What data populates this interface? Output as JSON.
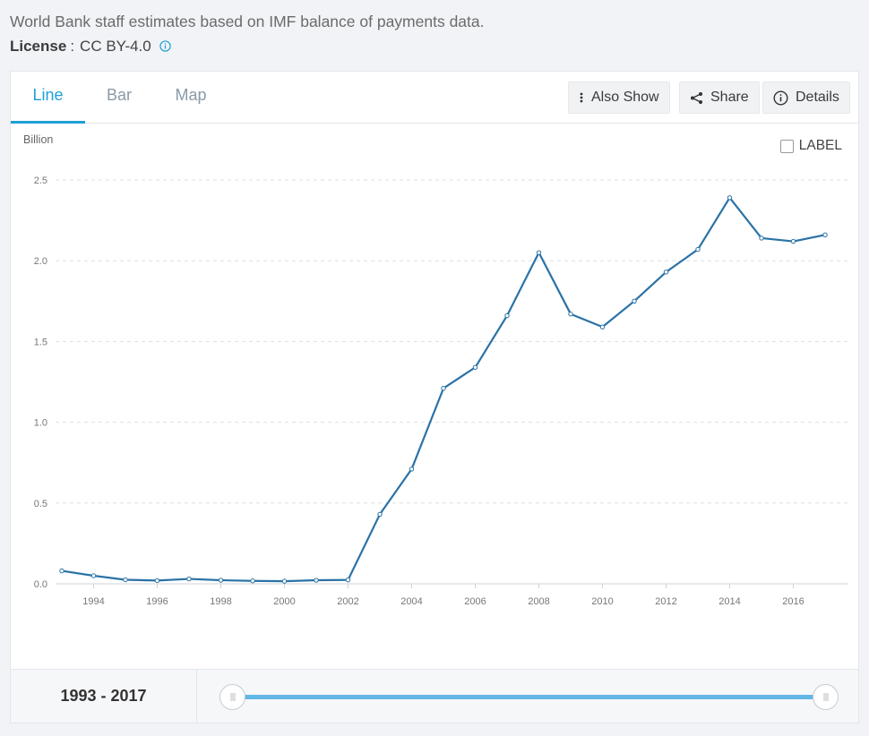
{
  "source_note": "World Bank staff estimates based on IMF balance of payments data.",
  "license": {
    "label": "License",
    "separator": ":",
    "value": "CC BY-4.0",
    "icon": "info-icon"
  },
  "tabs": [
    {
      "label": "Line",
      "active": true
    },
    {
      "label": "Bar",
      "active": false
    },
    {
      "label": "Map",
      "active": false
    }
  ],
  "toolbar": {
    "also_show": "Also Show",
    "share": "Share",
    "details": "Details"
  },
  "label_toggle": {
    "text": "LABEL",
    "checked": false
  },
  "range": {
    "label": "1993 - 2017",
    "start": 1993,
    "end": 2017
  },
  "colors": {
    "accent": "#1f9fd6",
    "line": "#2a72a6",
    "slider": "#63b7e6"
  },
  "chart_data": {
    "type": "line",
    "ylabel": "Billion",
    "ylim": [
      0,
      2.5
    ],
    "yticks": [
      "0.0",
      "0.5",
      "1.0",
      "1.5",
      "2.0",
      "2.5"
    ],
    "xticks": [
      "1994",
      "1996",
      "1998",
      "2000",
      "2002",
      "2004",
      "2006",
      "2008",
      "2010",
      "2012",
      "2014",
      "2016"
    ],
    "grid": true,
    "x": [
      1993,
      1994,
      1995,
      1996,
      1997,
      1998,
      1999,
      2000,
      2001,
      2002,
      2003,
      2004,
      2005,
      2006,
      2007,
      2008,
      2009,
      2010,
      2011,
      2012,
      2013,
      2014,
      2015,
      2016,
      2017
    ],
    "values": [
      0.08,
      0.05,
      0.025,
      0.02,
      0.03,
      0.022,
      0.018,
      0.016,
      0.022,
      0.024,
      0.43,
      0.71,
      1.21,
      1.34,
      1.66,
      2.05,
      1.67,
      1.59,
      1.75,
      1.93,
      2.07,
      2.39,
      2.14,
      2.12,
      2.16
    ]
  }
}
